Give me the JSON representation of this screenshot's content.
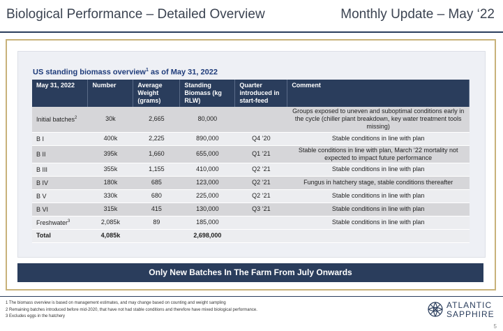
{
  "header": {
    "title": "Biological Performance – Detailed Overview",
    "update": "Monthly Update – May ‘22"
  },
  "panel": {
    "title_prefix": "US standing biomass overview",
    "title_sup": "1",
    "title_suffix": " as of May 31, 2022"
  },
  "table": {
    "headers": [
      "May 31, 2022",
      "Number",
      "Average Weight (grams)",
      "Standing Biomass (kg RLW)",
      "Quarter introduced in start-feed",
      "Comment"
    ],
    "rows": [
      {
        "label": "Initial batches",
        "sup": "2",
        "number": "30k",
        "weight": "2,665",
        "biomass": "80,000",
        "quarter": "",
        "comment": "Groups exposed to uneven and suboptimal conditions early in the cycle (chiller plant breakdown, key water treatment tools missing)"
      },
      {
        "label": "B I",
        "sup": "",
        "number": "400k",
        "weight": "2,225",
        "biomass": "890,000",
        "quarter": "Q4 ‘20",
        "comment": "Stable conditions in line with plan"
      },
      {
        "label": "B II",
        "sup": "",
        "number": "395k",
        "weight": "1,660",
        "biomass": "655,000",
        "quarter": "Q1 ‘21",
        "comment": "Stable conditions in line with plan, March ‘22 mortality not expected to impact future performance"
      },
      {
        "label": "B III",
        "sup": "",
        "number": "355k",
        "weight": "1,155",
        "biomass": "410,000",
        "quarter": "Q2 ‘21",
        "comment": "Stable conditions in line with plan"
      },
      {
        "label": "B IV",
        "sup": "",
        "number": "180k",
        "weight": "685",
        "biomass": "123,000",
        "quarter": "Q2 ‘21",
        "comment": "Fungus in hatchery stage, stable conditions thereafter"
      },
      {
        "label": "B V",
        "sup": "",
        "number": "330k",
        "weight": "680",
        "biomass": "225,000",
        "quarter": "Q2 ‘21",
        "comment": "Stable conditions in line with plan"
      },
      {
        "label": "B VI",
        "sup": "",
        "number": "315k",
        "weight": "415",
        "biomass": "130,000",
        "quarter": "Q3 ‘21",
        "comment": "Stable conditions in line with plan"
      },
      {
        "label": "Freshwater",
        "sup": "3",
        "number": "2,085k",
        "weight": "89",
        "biomass": "185,000",
        "quarter": "",
        "comment": "Stable conditions in line with plan"
      }
    ],
    "total": {
      "label": "Total",
      "number": "4,085k",
      "weight": "",
      "biomass": "2,698,000",
      "quarter": "",
      "comment": ""
    }
  },
  "banner": "Only New Batches In The Farm From July Onwards",
  "footnotes": [
    "1 The biomass overview is based on management estimates, and may change based on counting and weight sampling",
    "2 Remaining batches introduced before mid-2020, that have not had stable conditions and therefore have mixed biological performance.",
    "3 Excludes eggs in the hatchery"
  ],
  "logo": {
    "line1": "ATLANTIC",
    "line2": "SAPPHIRE",
    "icon": "sapphire-logo-icon"
  },
  "page_number": "5"
}
